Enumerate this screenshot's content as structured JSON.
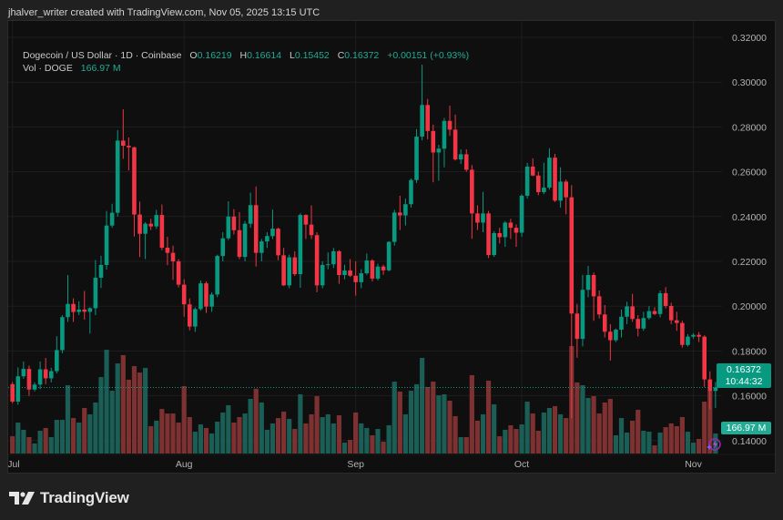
{
  "credit": "jhalver_writer created with TradingView.com, Nov 05, 2025 13:15 UTC",
  "legend": {
    "symbol": "Dogecoin / US Dollar · 1D · Coinbase",
    "o_label": "O",
    "o": "0.16219",
    "h_label": "H",
    "h": "0.16614",
    "l_label": "L",
    "l": "0.15452",
    "c_label": "C",
    "c": "0.16372",
    "change": "+0.00151 (+0.93%)",
    "vol_label": "Vol · DOGE",
    "vol": "166.97 M"
  },
  "price_tag": {
    "price": "0.16372",
    "countdown": "10:44:32"
  },
  "volume_tag": "166.97 M",
  "footer": {
    "brand": "TradingView"
  },
  "colors": {
    "up": "#089981",
    "down": "#f23645",
    "up_volume": "#1a5e56",
    "down_volume": "#7d3131",
    "background": "#0f0f0f",
    "grid": "#1e1e1e"
  },
  "icons": {
    "lightning": "lightning-icon",
    "logo": "tradingview-logo"
  },
  "chart_data": {
    "type": "candlestick",
    "symbol": "Dogecoin / US Dollar",
    "interval": "1D",
    "y_axis": {
      "ticks": [
        "0.32000",
        "0.30000",
        "0.28000",
        "0.26000",
        "0.24000",
        "0.22000",
        "0.20000",
        "0.18000",
        "0.16000",
        "0.14000"
      ],
      "range": [
        0.14,
        0.32
      ],
      "position": "right"
    },
    "x_axis": {
      "ticks": [
        "Jul",
        "Aug",
        "Sep",
        "Oct",
        "Nov"
      ]
    },
    "grid": true,
    "ohlc_fields": [
      "open",
      "high",
      "low",
      "close"
    ],
    "ohlc": [
      [
        0.1652,
        0.1662,
        0.1567,
        0.1574
      ],
      [
        0.1574,
        0.1727,
        0.156,
        0.1687
      ],
      [
        0.1687,
        0.1753,
        0.1676,
        0.172
      ],
      [
        0.172,
        0.1735,
        0.16,
        0.1628
      ],
      [
        0.1628,
        0.166,
        0.162,
        0.165
      ],
      [
        0.165,
        0.1753,
        0.163,
        0.1718
      ],
      [
        0.1718,
        0.1769,
        0.1652,
        0.1678
      ],
      [
        0.1678,
        0.1725,
        0.166,
        0.171
      ],
      [
        0.171,
        0.1866,
        0.17,
        0.1804
      ],
      [
        0.1804,
        0.196,
        0.179,
        0.1951
      ],
      [
        0.1951,
        0.2139,
        0.193,
        0.201
      ],
      [
        0.201,
        0.2035,
        0.193,
        0.1974
      ],
      [
        0.1974,
        0.2022,
        0.196,
        0.1985
      ],
      [
        0.1985,
        0.2068,
        0.194,
        0.1975
      ],
      [
        0.1975,
        0.1995,
        0.1878,
        0.1991
      ],
      [
        0.1991,
        0.2206,
        0.196,
        0.2127
      ],
      [
        0.2127,
        0.2225,
        0.2081,
        0.2184
      ],
      [
        0.2184,
        0.2425,
        0.2163,
        0.236
      ],
      [
        0.236,
        0.2457,
        0.235,
        0.2417
      ],
      [
        0.2417,
        0.2786,
        0.24,
        0.2739
      ],
      [
        0.2739,
        0.2879,
        0.2658,
        0.2716
      ],
      [
        0.2716,
        0.2753,
        0.2606,
        0.2709
      ],
      [
        0.2709,
        0.2712,
        0.2311,
        0.2409
      ],
      [
        0.2409,
        0.2467,
        0.2219,
        0.2323
      ],
      [
        0.2323,
        0.2375,
        0.221,
        0.2368
      ],
      [
        0.2368,
        0.239,
        0.234,
        0.2356
      ],
      [
        0.2356,
        0.243,
        0.2345,
        0.2407
      ],
      [
        0.2407,
        0.2454,
        0.225,
        0.2261
      ],
      [
        0.2261,
        0.231,
        0.2183,
        0.2238
      ],
      [
        0.2238,
        0.227,
        0.2117,
        0.22
      ],
      [
        0.22,
        0.221,
        0.2084,
        0.2096
      ],
      [
        0.2096,
        0.212,
        0.1953,
        0.2008
      ],
      [
        0.2008,
        0.2035,
        0.1892,
        0.1909
      ],
      [
        0.1909,
        0.1995,
        0.1885,
        0.1987
      ],
      [
        0.1987,
        0.2115,
        0.198,
        0.2102
      ],
      [
        0.2102,
        0.211,
        0.197,
        0.1998
      ],
      [
        0.1998,
        0.2062,
        0.1975,
        0.2052
      ],
      [
        0.2052,
        0.223,
        0.204,
        0.2224
      ],
      [
        0.2224,
        0.233,
        0.22,
        0.2303
      ],
      [
        0.2303,
        0.2468,
        0.2295,
        0.24
      ],
      [
        0.24,
        0.2433,
        0.232,
        0.2339
      ],
      [
        0.2339,
        0.242,
        0.221,
        0.222
      ],
      [
        0.222,
        0.238,
        0.22,
        0.2368
      ],
      [
        0.2368,
        0.2507,
        0.235,
        0.2451
      ],
      [
        0.2451,
        0.2534,
        0.2177,
        0.2238
      ],
      [
        0.2238,
        0.23,
        0.22,
        0.2289
      ],
      [
        0.2289,
        0.233,
        0.226,
        0.2313
      ],
      [
        0.2313,
        0.2431,
        0.23,
        0.2346
      ],
      [
        0.2346,
        0.235,
        0.2205,
        0.2227
      ],
      [
        0.2227,
        0.226,
        0.209,
        0.2093
      ],
      [
        0.2093,
        0.223,
        0.208,
        0.2218
      ],
      [
        0.2218,
        0.2245,
        0.2135,
        0.2143
      ],
      [
        0.2143,
        0.2415,
        0.2082,
        0.2407
      ],
      [
        0.2407,
        0.241,
        0.23,
        0.2364
      ],
      [
        0.2364,
        0.245,
        0.23,
        0.2317
      ],
      [
        0.2317,
        0.233,
        0.2062,
        0.2093
      ],
      [
        0.2093,
        0.22,
        0.208,
        0.2184
      ],
      [
        0.2184,
        0.224,
        0.2165,
        0.2187
      ],
      [
        0.2187,
        0.226,
        0.217,
        0.2245
      ],
      [
        0.2245,
        0.225,
        0.21,
        0.2139
      ],
      [
        0.2139,
        0.2185,
        0.212,
        0.2159
      ],
      [
        0.2159,
        0.221,
        0.213,
        0.2136
      ],
      [
        0.2136,
        0.22,
        0.2047,
        0.2107
      ],
      [
        0.2107,
        0.2165,
        0.208,
        0.2147
      ],
      [
        0.2147,
        0.2235,
        0.214,
        0.2204
      ],
      [
        0.2204,
        0.221,
        0.211,
        0.2123
      ],
      [
        0.2123,
        0.219,
        0.2115,
        0.2177
      ],
      [
        0.2177,
        0.2185,
        0.214,
        0.216
      ],
      [
        0.216,
        0.229,
        0.2155,
        0.2287
      ],
      [
        0.2287,
        0.243,
        0.227,
        0.2418
      ],
      [
        0.2418,
        0.2493,
        0.234,
        0.2405
      ],
      [
        0.2405,
        0.248,
        0.236,
        0.2455
      ],
      [
        0.2455,
        0.257,
        0.244,
        0.2563
      ],
      [
        0.2563,
        0.279,
        0.255,
        0.2757
      ],
      [
        0.2757,
        0.3078,
        0.274,
        0.2898
      ],
      [
        0.2898,
        0.2925,
        0.2745,
        0.2782
      ],
      [
        0.2782,
        0.281,
        0.2553,
        0.2686
      ],
      [
        0.2686,
        0.272,
        0.256,
        0.2703
      ],
      [
        0.2703,
        0.284,
        0.262,
        0.2827
      ],
      [
        0.2827,
        0.2895,
        0.276,
        0.2788
      ],
      [
        0.2788,
        0.2855,
        0.265,
        0.2655
      ],
      [
        0.2655,
        0.27,
        0.2635,
        0.2678
      ],
      [
        0.2678,
        0.27,
        0.26,
        0.2609
      ],
      [
        0.2609,
        0.263,
        0.2301,
        0.2414
      ],
      [
        0.2414,
        0.245,
        0.234,
        0.2373
      ],
      [
        0.2373,
        0.251,
        0.233,
        0.2414
      ],
      [
        0.2414,
        0.2425,
        0.2215,
        0.2228
      ],
      [
        0.2228,
        0.2335,
        0.222,
        0.2326
      ],
      [
        0.2326,
        0.235,
        0.228,
        0.2308
      ],
      [
        0.2308,
        0.238,
        0.2265,
        0.2373
      ],
      [
        0.2373,
        0.239,
        0.23,
        0.235
      ],
      [
        0.235,
        0.2365,
        0.2265,
        0.2328
      ],
      [
        0.2328,
        0.25,
        0.231,
        0.2493
      ],
      [
        0.2493,
        0.264,
        0.248,
        0.2623
      ],
      [
        0.2623,
        0.266,
        0.258,
        0.2583
      ],
      [
        0.2583,
        0.26,
        0.2495,
        0.2509
      ],
      [
        0.2509,
        0.264,
        0.25,
        0.2529
      ],
      [
        0.2529,
        0.2705,
        0.252,
        0.2663
      ],
      [
        0.2663,
        0.268,
        0.2465,
        0.2471
      ],
      [
        0.2471,
        0.262,
        0.244,
        0.2556
      ],
      [
        0.2556,
        0.2565,
        0.241,
        0.2486
      ],
      [
        0.2486,
        0.254,
        0.15,
        0.1967
      ],
      [
        0.1967,
        0.201,
        0.177,
        0.1854
      ],
      [
        0.1854,
        0.214,
        0.182,
        0.2073
      ],
      [
        0.2073,
        0.218,
        0.204,
        0.2139
      ],
      [
        0.2139,
        0.215,
        0.1935,
        0.2044
      ],
      [
        0.2044,
        0.207,
        0.1945,
        0.1963
      ],
      [
        0.1963,
        0.2005,
        0.186,
        0.1886
      ],
      [
        0.1886,
        0.192,
        0.1757,
        0.1848
      ],
      [
        0.1848,
        0.19,
        0.184,
        0.1895
      ],
      [
        0.1895,
        0.1985,
        0.186,
        0.1953
      ],
      [
        0.1953,
        0.202,
        0.192,
        0.1999
      ],
      [
        0.1999,
        0.2055,
        0.193,
        0.1943
      ],
      [
        0.1943,
        0.196,
        0.1865,
        0.19
      ],
      [
        0.19,
        0.1975,
        0.189,
        0.1947
      ],
      [
        0.1947,
        0.2,
        0.194,
        0.1978
      ],
      [
        0.1978,
        0.1995,
        0.196,
        0.1965
      ],
      [
        0.1965,
        0.207,
        0.195,
        0.2058
      ],
      [
        0.2058,
        0.2085,
        0.199,
        0.2001
      ],
      [
        0.2001,
        0.2015,
        0.192,
        0.1937
      ],
      [
        0.1937,
        0.1975,
        0.189,
        0.1925
      ],
      [
        0.1925,
        0.1935,
        0.1815,
        0.1827
      ],
      [
        0.1827,
        0.1875,
        0.182,
        0.1864
      ],
      [
        0.1864,
        0.188,
        0.1855,
        0.1872
      ],
      [
        0.1872,
        0.1885,
        0.184,
        0.1864
      ],
      [
        0.1864,
        0.187,
        0.164,
        0.1673
      ],
      [
        0.1673,
        0.1709,
        0.154,
        0.1622
      ],
      [
        0.16219,
        0.16614,
        0.15452,
        0.16372
      ]
    ],
    "volume_millions": [
      144,
      258,
      198,
      137,
      84,
      190,
      213,
      137,
      281,
      281,
      570,
      296,
      258,
      380,
      327,
      426,
      638,
      866,
      524,
      752,
      821,
      616,
      730,
      676,
      714,
      228,
      274,
      372,
      334,
      334,
      258,
      562,
      304,
      182,
      243,
      213,
      167,
      266,
      342,
      403,
      258,
      304,
      334,
      456,
      540,
      426,
      198,
      251,
      296,
      350,
      289,
      205,
      494,
      251,
      327,
      479,
      304,
      327,
      251,
      319,
      91,
      114,
      342,
      251,
      213,
      152,
      205,
      99,
      236,
      600,
      517,
      327,
      524,
      578,
      798,
      555,
      600,
      486,
      494,
      441,
      312,
      137,
      137,
      654,
      274,
      327,
      608,
      410,
      144,
      198,
      236,
      205,
      243,
      433,
      334,
      190,
      342,
      380,
      395,
      327,
      296,
      897,
      593,
      570,
      464,
      479,
      334,
      426,
      456,
      152,
      296,
      175,
      274,
      365,
      190,
      182,
      68,
      175,
      220,
      251,
      228,
      304,
      182,
      91,
      122,
      433,
      524,
      166.97
    ],
    "last_price": 0.16372
  }
}
